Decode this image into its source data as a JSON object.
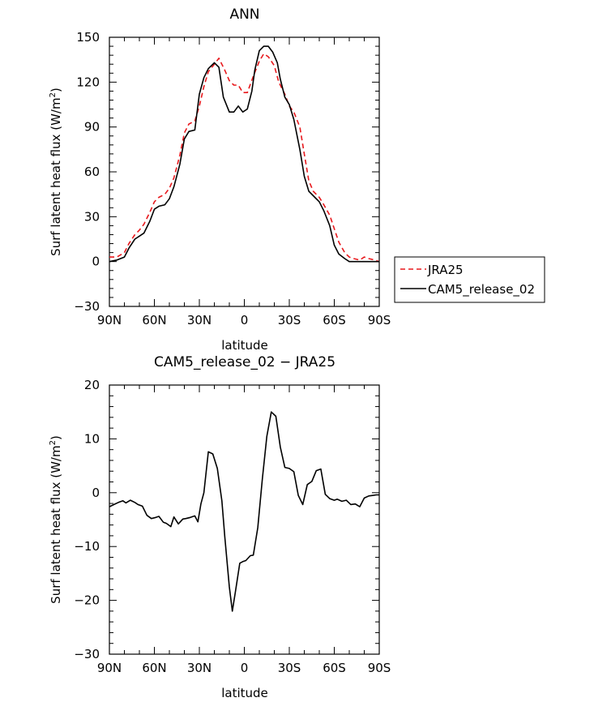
{
  "chart_data": [
    {
      "type": "line",
      "title": "ANN",
      "xlabel": "latitude",
      "ylabel": "Surf latent heat flux (W/m",
      "ylabel_sup": "2",
      "ylabel_close": ")",
      "xlim": [
        -90,
        90
      ],
      "ylim": [
        -30,
        150
      ],
      "xticks": [
        -90,
        -60,
        -30,
        0,
        30,
        60,
        90
      ],
      "xtick_labels": [
        "90N",
        "60N",
        "30N",
        "0",
        "30S",
        "60S",
        "90S"
      ],
      "yticks": [
        -30,
        0,
        30,
        60,
        90,
        120,
        150
      ],
      "ytick_labels": [
        "−30",
        "0",
        "30",
        "60",
        "90",
        "120",
        "150"
      ],
      "legend_position": "right",
      "series": [
        {
          "name": "JRA25",
          "color": "#e8191d",
          "dash": "dashed",
          "x": [
            -90,
            -85,
            -80,
            -77,
            -73,
            -70,
            -67,
            -63,
            -60,
            -57,
            -53,
            -50,
            -47,
            -43,
            -40,
            -37,
            -33,
            -30,
            -27,
            -24,
            -20,
            -17,
            -13,
            -10,
            -7,
            -4,
            -1,
            2,
            6,
            10,
            13,
            16,
            20,
            23,
            27,
            30,
            33,
            37,
            40,
            43,
            46,
            50,
            53,
            57,
            60,
            63,
            67,
            70,
            73,
            77,
            80,
            83,
            87,
            90
          ],
          "y": [
            3,
            3,
            6,
            12,
            18,
            21,
            25,
            33,
            40,
            43,
            45,
            49,
            56,
            71,
            86,
            92,
            94,
            104,
            117,
            127,
            132,
            136,
            128,
            121,
            118,
            118,
            113,
            113,
            124,
            134,
            139,
            137,
            131,
            120,
            112,
            104,
            100,
            90,
            72,
            54,
            47,
            43,
            38,
            31,
            22,
            13,
            6,
            3,
            2,
            1,
            3,
            2,
            1,
            0
          ]
        },
        {
          "name": "CAM5_release_02",
          "color": "#000000",
          "dash": "solid",
          "x": [
            -90,
            -85,
            -80,
            -77,
            -73,
            -70,
            -67,
            -63,
            -60,
            -57,
            -53,
            -50,
            -47,
            -43,
            -40,
            -37,
            -33,
            -30,
            -27,
            -24,
            -20,
            -17,
            -14,
            -10,
            -7,
            -4,
            -1,
            2,
            5,
            7,
            10,
            13,
            16,
            19,
            22,
            24,
            27,
            30,
            33,
            37,
            40,
            43,
            46,
            50,
            53,
            57,
            60,
            63,
            67,
            70,
            73,
            77,
            80,
            83,
            87,
            90
          ],
          "y": [
            0,
            1,
            3,
            9,
            15,
            17,
            19,
            27,
            35,
            37,
            38,
            42,
            50,
            65,
            82,
            87,
            88,
            112,
            123,
            129,
            133,
            130,
            110,
            100,
            100,
            104,
            100,
            102,
            114,
            128,
            141,
            144,
            144,
            140,
            133,
            122,
            110,
            105,
            95,
            75,
            57,
            47,
            44,
            40,
            34,
            24,
            11,
            5,
            2,
            0,
            0,
            0,
            0,
            0,
            0,
            0
          ]
        }
      ]
    },
    {
      "type": "line",
      "title": "CAM5_release_02 − JRA25",
      "xlabel": "latitude",
      "ylabel": "Surf latent heat flux (W/m",
      "ylabel_sup": "2",
      "ylabel_close": ")",
      "xlim": [
        -90,
        90
      ],
      "ylim": [
        -30,
        20
      ],
      "xticks": [
        -90,
        -60,
        -30,
        0,
        30,
        60,
        90
      ],
      "xtick_labels": [
        "90N",
        "60N",
        "30N",
        "0",
        "30S",
        "60S",
        "90S"
      ],
      "yticks": [
        -30,
        -20,
        -10,
        0,
        10,
        20
      ],
      "ytick_labels": [
        "−30",
        "−20",
        "−10",
        "0",
        "10",
        "20"
      ],
      "series": [
        {
          "color": "#000000",
          "dash": "solid",
          "x": [
            -90,
            -87,
            -84,
            -81,
            -79,
            -76,
            -73,
            -71,
            -68,
            -65,
            -62,
            -59,
            -57,
            -54,
            -52,
            -49,
            -47,
            -44,
            -41,
            -39,
            -36,
            -33,
            -31,
            -29,
            -27,
            -24,
            -21,
            -18,
            -15,
            -13,
            -10,
            -8,
            -6,
            -3,
            -1,
            1,
            4,
            6,
            9,
            12,
            15,
            18,
            21,
            24,
            27,
            30,
            33,
            36,
            39,
            42,
            45,
            48,
            51,
            54,
            57,
            60,
            62,
            65,
            68,
            71,
            74,
            77,
            80,
            83,
            86,
            88,
            90
          ],
          "y": [
            -2.6,
            -2.2,
            -1.8,
            -1.5,
            -1.9,
            -1.4,
            -1.8,
            -2.2,
            -2.5,
            -4.2,
            -4.8,
            -4.6,
            -4.4,
            -5.5,
            -5.7,
            -6.3,
            -4.5,
            -5.8,
            -4.9,
            -4.8,
            -4.6,
            -4.3,
            -5.4,
            -2.1,
            0,
            7.6,
            7.2,
            4.5,
            -1.5,
            -8.2,
            -17.5,
            -22,
            -18.5,
            -13.1,
            -12.8,
            -12.6,
            -11.7,
            -11.6,
            -6.5,
            2.5,
            10.5,
            15,
            14.2,
            8.5,
            4.7,
            4.5,
            3.9,
            -0.5,
            -2.2,
            1.5,
            2.1,
            4.1,
            4.4,
            -0.3,
            -1.1,
            -1.4,
            -1.2,
            -1.6,
            -1.4,
            -2.2,
            -2.1,
            -2.6,
            -1.0,
            -0.6,
            -0.5,
            -0.4,
            -0.4
          ]
        }
      ]
    }
  ]
}
